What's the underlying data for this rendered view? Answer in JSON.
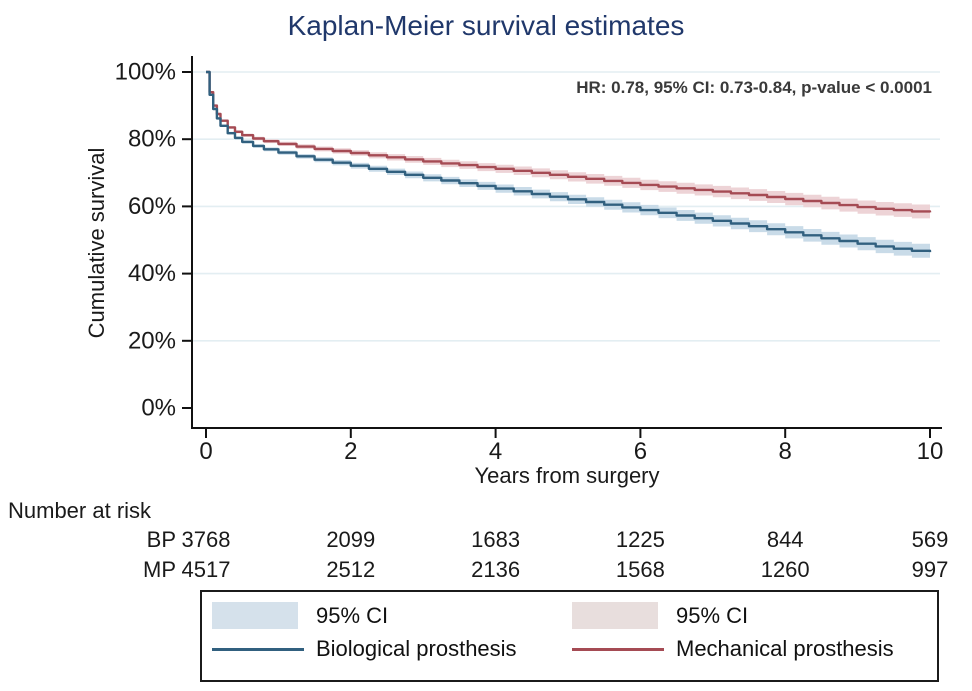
{
  "chart_data": {
    "type": "line",
    "title": "Kaplan-Meier survival estimates",
    "annotation": "HR: 0.78, 95% CI: 0.73-0.84, p-value < 0.0001",
    "xlabel": "Years from surgery",
    "ylabel": "Cumulative survival",
    "xlim": [
      0,
      10
    ],
    "ylim": [
      0,
      100
    ],
    "grid": "horizontal",
    "legend_position": "bottom",
    "x_ticks": [
      {
        "value": 0,
        "label": "0"
      },
      {
        "value": 2,
        "label": "2"
      },
      {
        "value": 4,
        "label": "4"
      },
      {
        "value": 6,
        "label": "6"
      },
      {
        "value": 8,
        "label": "8"
      },
      {
        "value": 10,
        "label": "10"
      }
    ],
    "y_ticks": [
      {
        "value": 0,
        "label": "0%"
      },
      {
        "value": 20,
        "label": "20%"
      },
      {
        "value": 40,
        "label": "40%"
      },
      {
        "value": 60,
        "label": "60%"
      },
      {
        "value": 80,
        "label": "80%"
      },
      {
        "value": 100,
        "label": "100%"
      }
    ],
    "grid_y_values": [
      20,
      40,
      60,
      80,
      100
    ],
    "ci_halfwidth": {
      "base": 0.25,
      "scale": 1.85,
      "exponent": 0.7
    },
    "series": [
      {
        "id": "biological",
        "name": "Biological prosthesis",
        "color": "#31607F",
        "ci_color": "#C9DBE8",
        "ci_label": "95% CI",
        "points": [
          [
            0,
            100
          ],
          [
            0.05,
            93.2
          ],
          [
            0.1,
            89
          ],
          [
            0.15,
            86.2
          ],
          [
            0.2,
            84
          ],
          [
            0.3,
            81.8
          ],
          [
            0.4,
            80.4
          ],
          [
            0.5,
            79.2
          ],
          [
            0.65,
            78
          ],
          [
            0.8,
            77
          ],
          [
            1,
            76
          ],
          [
            1.25,
            74.9
          ],
          [
            1.5,
            73.9
          ],
          [
            1.75,
            73
          ],
          [
            2,
            72.1
          ],
          [
            2.25,
            71.2
          ],
          [
            2.5,
            70.3
          ],
          [
            2.75,
            69.4
          ],
          [
            3,
            68.5
          ],
          [
            3.25,
            67.7
          ],
          [
            3.5,
            66.9
          ],
          [
            3.75,
            66.1
          ],
          [
            4,
            65.3
          ],
          [
            4.25,
            64.5
          ],
          [
            4.5,
            63.7
          ],
          [
            4.75,
            62.9
          ],
          [
            5,
            62.1
          ],
          [
            5.25,
            61.3
          ],
          [
            5.5,
            60.5
          ],
          [
            5.75,
            59.7
          ],
          [
            6,
            58.9
          ],
          [
            6.25,
            58.1
          ],
          [
            6.5,
            57.3
          ],
          [
            6.75,
            56.5
          ],
          [
            7,
            55.7
          ],
          [
            7.25,
            54.9
          ],
          [
            7.5,
            54.1
          ],
          [
            7.75,
            53.2
          ],
          [
            8,
            52.3
          ],
          [
            8.25,
            51.4
          ],
          [
            8.5,
            50.5
          ],
          [
            8.75,
            49.7
          ],
          [
            9,
            48.9
          ],
          [
            9.25,
            48.1
          ],
          [
            9.5,
            47.4
          ],
          [
            9.75,
            46.8
          ],
          [
            10,
            46.4
          ]
        ]
      },
      {
        "id": "mechanical",
        "name": "Mechanical prosthesis",
        "color": "#A54B54",
        "ci_color": "#EDD3D6",
        "ci_label": "95% CI",
        "points": [
          [
            0,
            100
          ],
          [
            0.05,
            94
          ],
          [
            0.1,
            90
          ],
          [
            0.15,
            87.5
          ],
          [
            0.2,
            85.5
          ],
          [
            0.3,
            83.5
          ],
          [
            0.4,
            82.2
          ],
          [
            0.5,
            81.2
          ],
          [
            0.65,
            80.2
          ],
          [
            0.8,
            79.4
          ],
          [
            1,
            78.6
          ],
          [
            1.25,
            77.8
          ],
          [
            1.5,
            77.1
          ],
          [
            1.75,
            76.5
          ],
          [
            2,
            75.9
          ],
          [
            2.25,
            75.2
          ],
          [
            2.5,
            74.6
          ],
          [
            2.75,
            74
          ],
          [
            3,
            73.4
          ],
          [
            3.25,
            72.8
          ],
          [
            3.5,
            72.3
          ],
          [
            3.75,
            71.7
          ],
          [
            4,
            71.2
          ],
          [
            4.25,
            70.6
          ],
          [
            4.5,
            70
          ],
          [
            4.75,
            69.4
          ],
          [
            5,
            68.8
          ],
          [
            5.25,
            68.2
          ],
          [
            5.5,
            67.6
          ],
          [
            5.75,
            67
          ],
          [
            6,
            66.4
          ],
          [
            6.25,
            65.9
          ],
          [
            6.5,
            65.4
          ],
          [
            6.75,
            64.9
          ],
          [
            7,
            64.4
          ],
          [
            7.25,
            63.9
          ],
          [
            7.5,
            63.4
          ],
          [
            7.75,
            62.8
          ],
          [
            8,
            62.2
          ],
          [
            8.25,
            61.6
          ],
          [
            8.5,
            61
          ],
          [
            8.75,
            60.4
          ],
          [
            9,
            59.8
          ],
          [
            9.25,
            59.3
          ],
          [
            9.5,
            58.9
          ],
          [
            9.75,
            58.5
          ],
          [
            10,
            58.2
          ]
        ]
      }
    ]
  },
  "risk_table": {
    "header": "Number at risk",
    "rows": [
      {
        "label": "BP",
        "values": [
          3768,
          2099,
          1683,
          1225,
          844,
          569
        ]
      },
      {
        "label": "MP",
        "values": [
          4517,
          2512,
          2136,
          1568,
          1260,
          997
        ]
      }
    ]
  },
  "legend": {
    "items": [
      {
        "type": "band",
        "label": "95% CI",
        "color": "#D5E1EB"
      },
      {
        "type": "band",
        "label": "95% CI",
        "color": "#E8DEDD"
      },
      {
        "type": "line",
        "label": "Biological prosthesis",
        "color": "#31607F"
      },
      {
        "type": "line",
        "label": "Mechanical prosthesis",
        "color": "#A54B54"
      }
    ]
  },
  "colors": {
    "title": "#20386B",
    "annotation": "#3A3A3A",
    "grid": "#E3EEF2",
    "axis": "#111111"
  }
}
